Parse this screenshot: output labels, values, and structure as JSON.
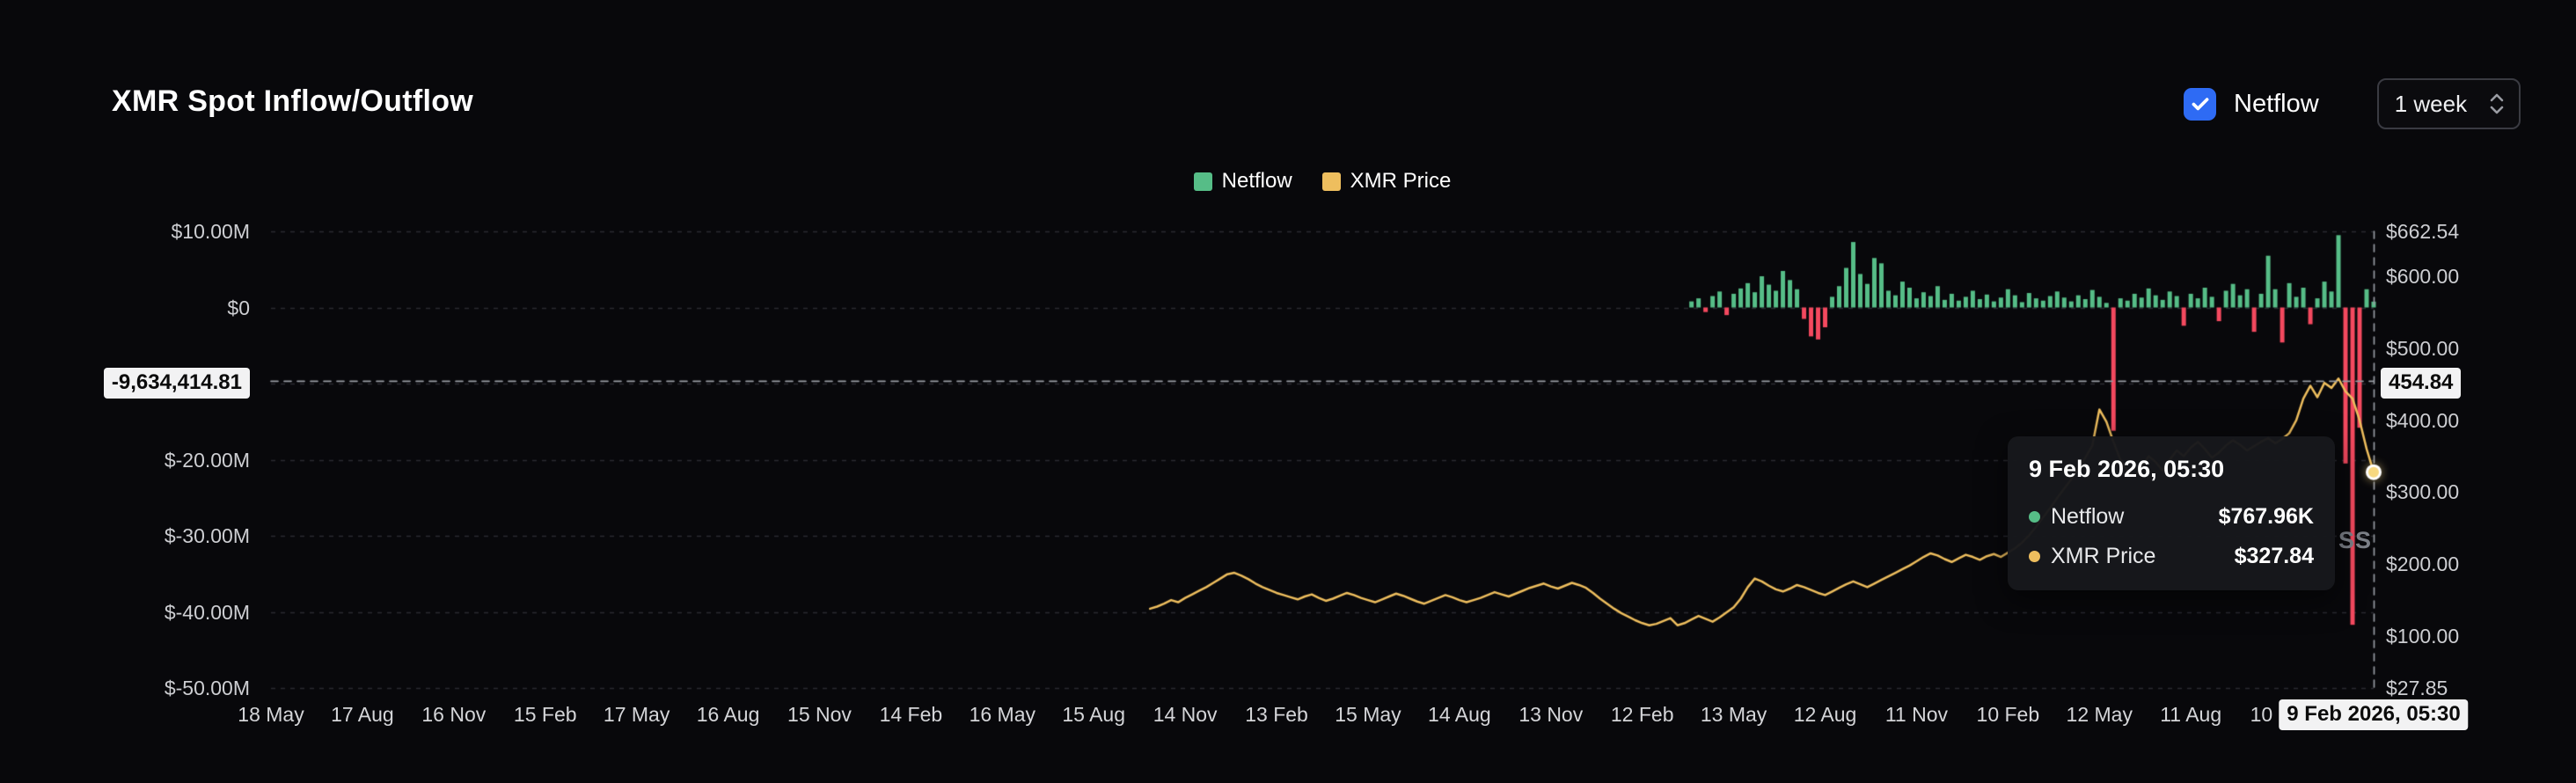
{
  "header": {
    "title": "XMR Spot Inflow/Outflow",
    "netflow_toggle": {
      "label": "Netflow",
      "checked": true
    },
    "interval_select": {
      "value": "1 week"
    }
  },
  "legend": {
    "items": [
      {
        "label": "Netflow",
        "color": "#56bd87"
      },
      {
        "label": "XMR Price",
        "color": "#eebe5e"
      }
    ]
  },
  "tooltip": {
    "title": "9 Feb 2026, 05:30",
    "rows": [
      {
        "label": "Netflow",
        "value": "$767.96K",
        "color": "#56bd87"
      },
      {
        "label": "XMR Price",
        "value": "$327.84",
        "color": "#eebe5e"
      }
    ]
  },
  "crosshair_labels": {
    "left_value": "-9,634,414.81",
    "right_value": "454.84",
    "date": "9 Feb 2026, 05:30"
  },
  "watermark": "SS",
  "colors": {
    "accent_blue": "#2e6bf4",
    "positive_green": "#56bd87",
    "negative_red": "#f4495f",
    "price_yellow": "#eebe5e",
    "grid": "#2a2b31",
    "crosshair": "#979ba3"
  },
  "chart_data": {
    "type": "mixed",
    "title": "XMR Spot Inflow/Outflow",
    "interval": "1 week",
    "legend_position": "top-center",
    "grid": true,
    "x_domain": {
      "min_week": 0,
      "max_week": 299,
      "end_label": "9 Feb 2026, 05:30"
    },
    "x_ticks": [
      {
        "week": 0,
        "label": "18 May"
      },
      {
        "week": 13,
        "label": "17 Aug"
      },
      {
        "week": 26,
        "label": "16 Nov"
      },
      {
        "week": 39,
        "label": "15 Feb"
      },
      {
        "week": 52,
        "label": "17 May"
      },
      {
        "week": 65,
        "label": "16 Aug"
      },
      {
        "week": 78,
        "label": "15 Nov"
      },
      {
        "week": 91,
        "label": "14 Feb"
      },
      {
        "week": 104,
        "label": "16 May"
      },
      {
        "week": 117,
        "label": "15 Aug"
      },
      {
        "week": 130,
        "label": "14 Nov"
      },
      {
        "week": 143,
        "label": "13 Feb"
      },
      {
        "week": 156,
        "label": "15 May"
      },
      {
        "week": 169,
        "label": "14 Aug"
      },
      {
        "week": 182,
        "label": "13 Nov"
      },
      {
        "week": 195,
        "label": "12 Feb"
      },
      {
        "week": 208,
        "label": "13 May"
      },
      {
        "week": 221,
        "label": "12 Aug"
      },
      {
        "week": 234,
        "label": "11 Nov"
      },
      {
        "week": 247,
        "label": "10 Feb"
      },
      {
        "week": 260,
        "label": "12 May"
      },
      {
        "week": 273,
        "label": "11 Aug"
      },
      {
        "week": 286,
        "label": "10 Nov"
      }
    ],
    "left_axis": {
      "unit": "USD (millions)",
      "max": 10,
      "min": -50,
      "gridline_values": [
        10,
        0,
        -10,
        -20,
        -30,
        -40,
        -50
      ],
      "ticks": [
        {
          "value": 10,
          "label": "$10.00M"
        },
        {
          "value": 0,
          "label": "$0"
        },
        {
          "value": -20,
          "label": "$-20.00M"
        },
        {
          "value": -30,
          "label": "$-30.00M"
        },
        {
          "value": -40,
          "label": "$-40.00M"
        },
        {
          "value": -50,
          "label": "$-50.00M"
        }
      ]
    },
    "right_axis": {
      "unit": "USD",
      "max": 662.54,
      "min": 27.85,
      "ticks": [
        {
          "value": 662.54,
          "label": "$662.54"
        },
        {
          "value": 600,
          "label": "$600.00"
        },
        {
          "value": 500,
          "label": "$500.00"
        },
        {
          "value": 400,
          "label": "$400.00"
        },
        {
          "value": 300,
          "label": "$300.00"
        },
        {
          "value": 200,
          "label": "$200.00"
        },
        {
          "value": 100,
          "label": "$100.00"
        },
        {
          "value": 27.85,
          "label": "$27.85"
        }
      ]
    },
    "series": [
      {
        "name": "Netflow",
        "type": "bar",
        "axis": "left",
        "unit": "USD millions",
        "color_positive": "#56bd87",
        "color_negative": "#f4495f",
        "start_week": 202,
        "values": [
          0.8,
          1.2,
          -0.6,
          1.5,
          2.1,
          -1.0,
          1.8,
          2.5,
          3.2,
          2.0,
          4.1,
          3.0,
          2.2,
          4.8,
          3.6,
          2.4,
          -1.5,
          -3.8,
          -4.2,
          -2.6,
          1.4,
          2.8,
          5.2,
          8.6,
          4.4,
          3.1,
          6.5,
          5.8,
          2.2,
          1.6,
          3.4,
          2.6,
          1.2,
          2.0,
          1.5,
          2.8,
          1.0,
          1.8,
          0.9,
          1.4,
          2.2,
          1.1,
          1.7,
          0.8,
          1.3,
          2.4,
          1.6,
          0.7,
          1.9,
          1.2,
          0.9,
          1.5,
          2.1,
          1.3,
          0.8,
          1.6,
          1.1,
          2.3,
          1.4,
          0.6,
          -16.2,
          1.2,
          0.9,
          1.8,
          1.3,
          2.5,
          1.6,
          1.0,
          2.1,
          1.5,
          -2.4,
          1.8,
          1.2,
          2.6,
          1.4,
          -1.8,
          2.2,
          3.1,
          1.6,
          2.4,
          -3.2,
          1.8,
          6.8,
          2.4,
          -4.6,
          3.2,
          1.4,
          2.6,
          -2.2,
          1.2,
          3.4,
          2.1,
          9.5,
          -20.5,
          -41.7,
          -15.8,
          2.4,
          0.77
        ]
      },
      {
        "name": "XMR Price",
        "type": "line",
        "axis": "right",
        "unit": "USD",
        "color": "#eebe5e",
        "start_week": 125,
        "values": [
          138,
          141,
          145,
          150,
          147,
          153,
          158,
          163,
          168,
          174,
          180,
          186,
          188,
          184,
          179,
          173,
          168,
          164,
          160,
          157,
          154,
          151,
          155,
          158,
          153,
          149,
          152,
          156,
          160,
          157,
          153,
          150,
          147,
          151,
          155,
          159,
          156,
          152,
          148,
          145,
          149,
          153,
          157,
          154,
          150,
          147,
          150,
          153,
          157,
          161,
          158,
          155,
          159,
          163,
          167,
          170,
          173,
          169,
          166,
          170,
          174,
          171,
          167,
          160,
          152,
          145,
          138,
          132,
          127,
          122,
          118,
          115,
          117,
          121,
          125,
          115,
          118,
          123,
          128,
          124,
          120,
          126,
          133,
          140,
          152,
          168,
          180,
          176,
          170,
          165,
          162,
          166,
          171,
          168,
          164,
          160,
          157,
          162,
          167,
          172,
          176,
          172,
          168,
          173,
          178,
          183,
          188,
          193,
          198,
          204,
          210,
          215,
          212,
          207,
          203,
          208,
          213,
          210,
          206,
          211,
          214,
          210,
          216,
          222,
          230,
          240,
          252,
          265,
          278,
          292,
          305,
          318,
          332,
          348,
          365,
          415,
          398,
          370,
          345,
          330,
          322,
          335,
          350,
          342,
          330,
          345,
          358,
          350,
          362,
          370,
          360,
          348,
          355,
          365,
          372,
          366,
          358,
          364,
          370,
          375,
          368,
          374,
          382,
          400,
          430,
          448,
          432,
          452,
          445,
          458,
          440,
          430,
          400,
          360,
          327.84
        ]
      }
    ],
    "crosshair": {
      "week": 299,
      "left_axis_value_millions": -9.63441481,
      "right_axis_value": 454.84,
      "price_point": 327.84,
      "hover_netflow_label": "$767.96K",
      "hover_price_label": "$327.84"
    }
  }
}
